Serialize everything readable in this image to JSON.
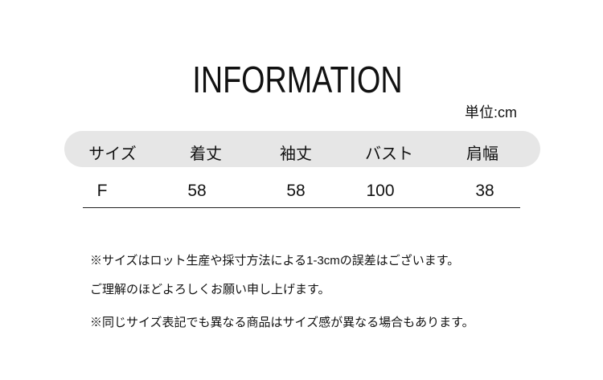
{
  "title": "INFORMATION",
  "unit": "単位:cm",
  "table": {
    "headers": [
      "サイズ",
      "着丈",
      "袖丈",
      "バスト",
      "肩幅"
    ],
    "rows": [
      [
        "F",
        "58",
        "58",
        "100",
        "38"
      ]
    ]
  },
  "notes": [
    "※サイズはロット生産や採寸方法による1-3cmの誤差はございます。",
    "ご理解のほどよろしくお願い申し上げます。",
    "※同じサイズ表記でも異なる商品はサイズ感が異なる場合もあります。"
  ],
  "colors": {
    "header_bg": "#e6e6e6",
    "text": "#111111"
  }
}
